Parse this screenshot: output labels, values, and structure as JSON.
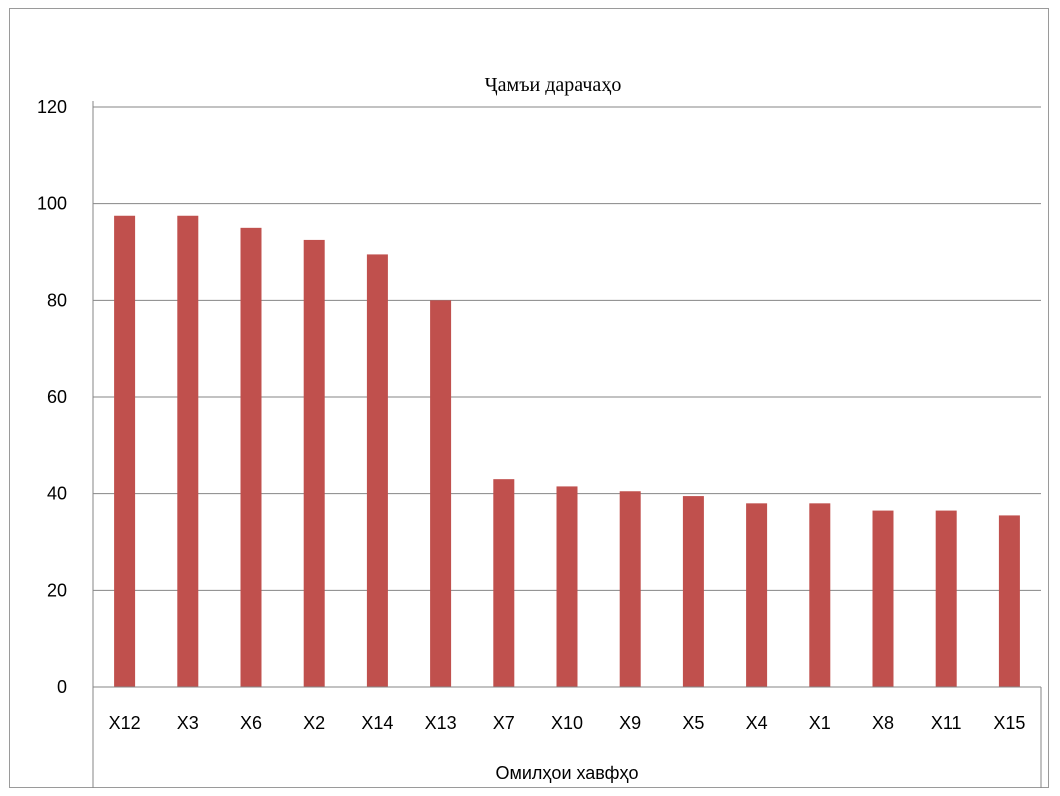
{
  "chart_data": {
    "type": "bar",
    "title": "Ҷамъи дарачаҳо",
    "xlabel": "Омилҳои хавфҳо",
    "ylabel": "",
    "ylim": [
      0,
      120
    ],
    "yticks": [
      0,
      20,
      40,
      60,
      80,
      100,
      120
    ],
    "grid": true,
    "legend": "none",
    "categories": [
      "X12",
      "X3",
      "X6",
      "X2",
      "X14",
      "X13",
      "X7",
      "X10",
      "X9",
      "X5",
      "X4",
      "X1",
      "X8",
      "X11",
      "X15"
    ],
    "series": [
      {
        "values": [
          97.5,
          97.5,
          95,
          92.5,
          89.5,
          80,
          43,
          41.5,
          40.5,
          39.5,
          38,
          38,
          36.5,
          36.5,
          35.5
        ]
      }
    ],
    "colors": {
      "bar": "#c0504d",
      "grid": "#868686",
      "axis": "#868686"
    }
  }
}
